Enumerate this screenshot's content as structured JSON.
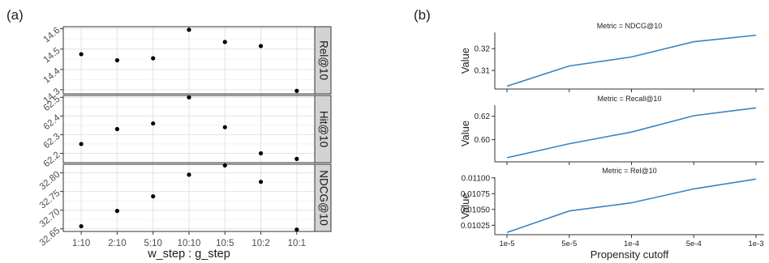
{
  "panels": [
    {
      "label": "(a)"
    },
    {
      "label": "(b)"
    }
  ],
  "chart_data": [
    {
      "type": "scatter",
      "panel": "(a)",
      "xlabel": "w_step : g_step",
      "categories": [
        "1:10",
        "2:10",
        "5:10",
        "10:10",
        "10:5",
        "10:2",
        "10:1"
      ],
      "facets": [
        {
          "name": "Rel@10",
          "values": [
            14.475,
            14.445,
            14.455,
            14.595,
            14.535,
            14.515,
            14.295
          ],
          "ylim": [
            14.28,
            14.61
          ],
          "yticks": [
            "14.3",
            "14.4",
            "14.5",
            "14.6"
          ],
          "ytick_values": [
            14.3,
            14.4,
            14.5,
            14.6
          ]
        },
        {
          "name": "Hit@10",
          "values": [
            62.25,
            62.33,
            62.36,
            62.5,
            62.34,
            62.2,
            62.17
          ],
          "ylim": [
            62.15,
            62.51
          ],
          "yticks": [
            "62.2",
            "62.3",
            "62.4",
            "62.5"
          ],
          "ytick_values": [
            62.2,
            62.3,
            62.4,
            62.5
          ]
        },
        {
          "name": "NDCG@10",
          "values": [
            32.657,
            32.698,
            32.737,
            32.795,
            32.82,
            32.776,
            32.648
          ],
          "ylim": [
            32.643,
            32.823
          ],
          "yticks": [
            "32.65",
            "32.70",
            "32.75",
            "32.80"
          ],
          "ytick_values": [
            32.65,
            32.7,
            32.75,
            32.8
          ]
        }
      ],
      "grid": true,
      "colors": {
        "point": "#000000",
        "panel_bg": "#ffffff",
        "grid": "#e3e3e3",
        "strip": "#d3d3d3"
      }
    },
    {
      "type": "line",
      "panel": "(b)",
      "xlabel": "Propensity cutoff",
      "ylabel": "Value",
      "categories": [
        "1e-5",
        "5e-5",
        "1e-4",
        "5e-4",
        "1e-3"
      ],
      "facets": [
        {
          "title": "Metric = NDCG@10",
          "values": [
            0.3028,
            0.3121,
            0.3162,
            0.3232,
            0.3262
          ],
          "ylim": [
            0.3015,
            0.3275
          ],
          "yticks": [
            "0.31",
            "0.32"
          ],
          "ytick_values": [
            0.31,
            0.32
          ]
        },
        {
          "title": "Metric = Recall@10",
          "values": [
            0.5845,
            0.5965,
            0.6065,
            0.6205,
            0.6272
          ],
          "ylim": [
            0.581,
            0.6295
          ],
          "yticks": [
            "0.60",
            "0.62"
          ],
          "ytick_values": [
            0.6,
            0.62
          ]
        },
        {
          "title": "Metric = Rel@10",
          "values": [
            0.010135,
            0.010475,
            0.010605,
            0.010825,
            0.01098
          ],
          "ylim": [
            0.0101,
            0.01101
          ],
          "yticks": [
            "0.01025",
            "0.01050",
            "0.01075",
            "0.01100"
          ],
          "ytick_values": [
            0.01025,
            0.0105,
            0.01075,
            0.011
          ]
        }
      ],
      "grid": false,
      "colors": {
        "line": "#3b84c0",
        "axis": "#333333"
      }
    }
  ]
}
